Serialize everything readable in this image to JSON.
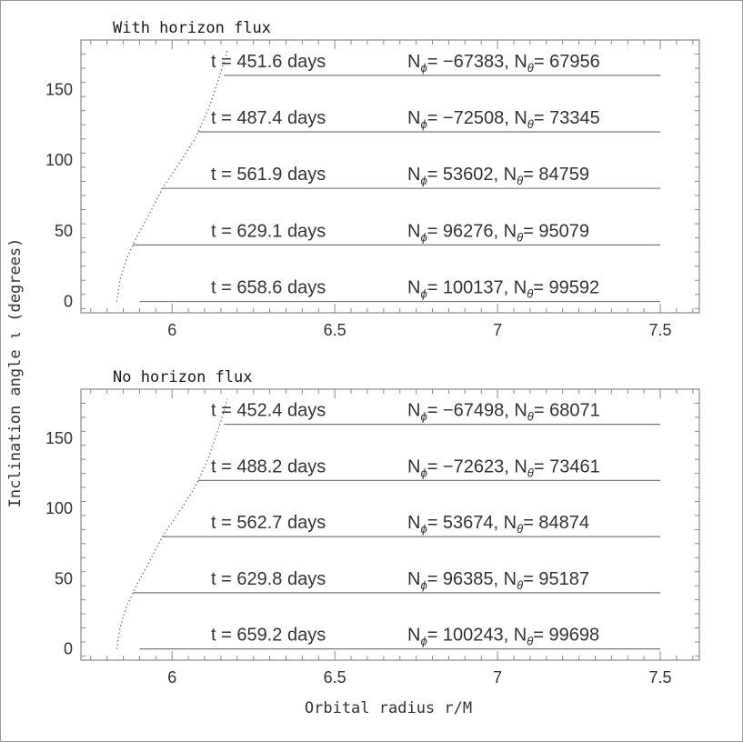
{
  "figure": {
    "xlabel": "Orbital radius r/M",
    "ylabel": "Inclination angle ι  (degrees)"
  },
  "chart_data": [
    {
      "type": "line",
      "title": "With horizon flux",
      "xlim": [
        5.72,
        7.62
      ],
      "ylim": [
        -8,
        185
      ],
      "x_ticks": [
        6,
        6.5,
        7,
        7.5
      ],
      "x_tick_labels": [
        "6",
        "6.5",
        "7",
        "7.5"
      ],
      "y_ticks": [
        0,
        50,
        100,
        150
      ],
      "y_tick_labels": [
        "0",
        "50",
        "100",
        "150"
      ],
      "grid": false,
      "trajectory": {
        "style": "dotted",
        "points": [
          [
            5.83,
            0
          ],
          [
            5.84,
            15
          ],
          [
            5.86,
            30
          ],
          [
            5.89,
            45
          ],
          [
            5.93,
            62
          ],
          [
            5.97,
            80
          ],
          [
            6.02,
            97
          ],
          [
            6.07,
            115
          ],
          [
            6.11,
            135
          ],
          [
            6.14,
            155
          ],
          [
            6.16,
            170
          ],
          [
            6.17,
            178
          ]
        ]
      },
      "snapshots": [
        {
          "t": "t = 451.6 days",
          "inclination": 160,
          "r_start": 6.16,
          "n_phi_label": "N",
          "n_phi": "= −67383,",
          "n_theta_label": "N",
          "n_theta": "= 67956"
        },
        {
          "t": "t = 487.4 days",
          "inclination": 120,
          "r_start": 6.08,
          "n_phi_label": "N",
          "n_phi": "= −72508,",
          "n_theta_label": "N",
          "n_theta": "= 73345"
        },
        {
          "t": "t = 561.9 days",
          "inclination": 80,
          "r_start": 5.97,
          "n_phi_label": "N",
          "n_phi": "= 53602,",
          "n_theta_label": "N",
          "n_theta": "= 84759"
        },
        {
          "t": "t = 629.1 days",
          "inclination": 40,
          "r_start": 5.88,
          "n_phi_label": "N",
          "n_phi": "= 96276,",
          "n_theta_label": "N",
          "n_theta": "= 95079"
        },
        {
          "t": "t = 658.6 days",
          "inclination": 0,
          "r_start": 5.9,
          "n_phi_label": "N",
          "n_phi": "= 100137,",
          "n_theta_label": "N",
          "n_theta": "= 99592"
        }
      ]
    },
    {
      "type": "line",
      "title": "No horizon flux",
      "xlim": [
        5.72,
        7.62
      ],
      "ylim": [
        -8,
        185
      ],
      "x_ticks": [
        6,
        6.5,
        7,
        7.5
      ],
      "x_tick_labels": [
        "6",
        "6.5",
        "7",
        "7.5"
      ],
      "y_ticks": [
        0,
        50,
        100,
        150
      ],
      "y_tick_labels": [
        "0",
        "50",
        "100",
        "150"
      ],
      "grid": false,
      "trajectory": {
        "style": "dotted",
        "points": [
          [
            5.83,
            0
          ],
          [
            5.84,
            15
          ],
          [
            5.86,
            30
          ],
          [
            5.89,
            45
          ],
          [
            5.93,
            62
          ],
          [
            5.97,
            80
          ],
          [
            6.02,
            97
          ],
          [
            6.07,
            115
          ],
          [
            6.11,
            135
          ],
          [
            6.14,
            155
          ],
          [
            6.16,
            170
          ],
          [
            6.17,
            178
          ]
        ]
      },
      "snapshots": [
        {
          "t": "t = 452.4 days",
          "inclination": 160,
          "r_start": 6.16,
          "n_phi_label": "N",
          "n_phi": "= −67498,",
          "n_theta_label": "N",
          "n_theta": "= 68071"
        },
        {
          "t": "t = 488.2 days",
          "inclination": 120,
          "r_start": 6.08,
          "n_phi_label": "N",
          "n_phi": "= −72623,",
          "n_theta_label": "N",
          "n_theta": "= 73461"
        },
        {
          "t": "t = 562.7 days",
          "inclination": 80,
          "r_start": 5.97,
          "n_phi_label": "N",
          "n_phi": "= 53674,",
          "n_theta_label": "N",
          "n_theta": "= 84874"
        },
        {
          "t": "t = 629.8 days",
          "inclination": 40,
          "r_start": 5.88,
          "n_phi_label": "N",
          "n_phi": "= 96385,",
          "n_theta_label": "N",
          "n_theta": "= 95187"
        },
        {
          "t": "t = 659.2 days",
          "inclination": 0,
          "r_start": 5.9,
          "n_phi_label": "N",
          "n_phi": "= 100243,",
          "n_theta_label": "N",
          "n_theta": "= 99698"
        }
      ]
    }
  ]
}
